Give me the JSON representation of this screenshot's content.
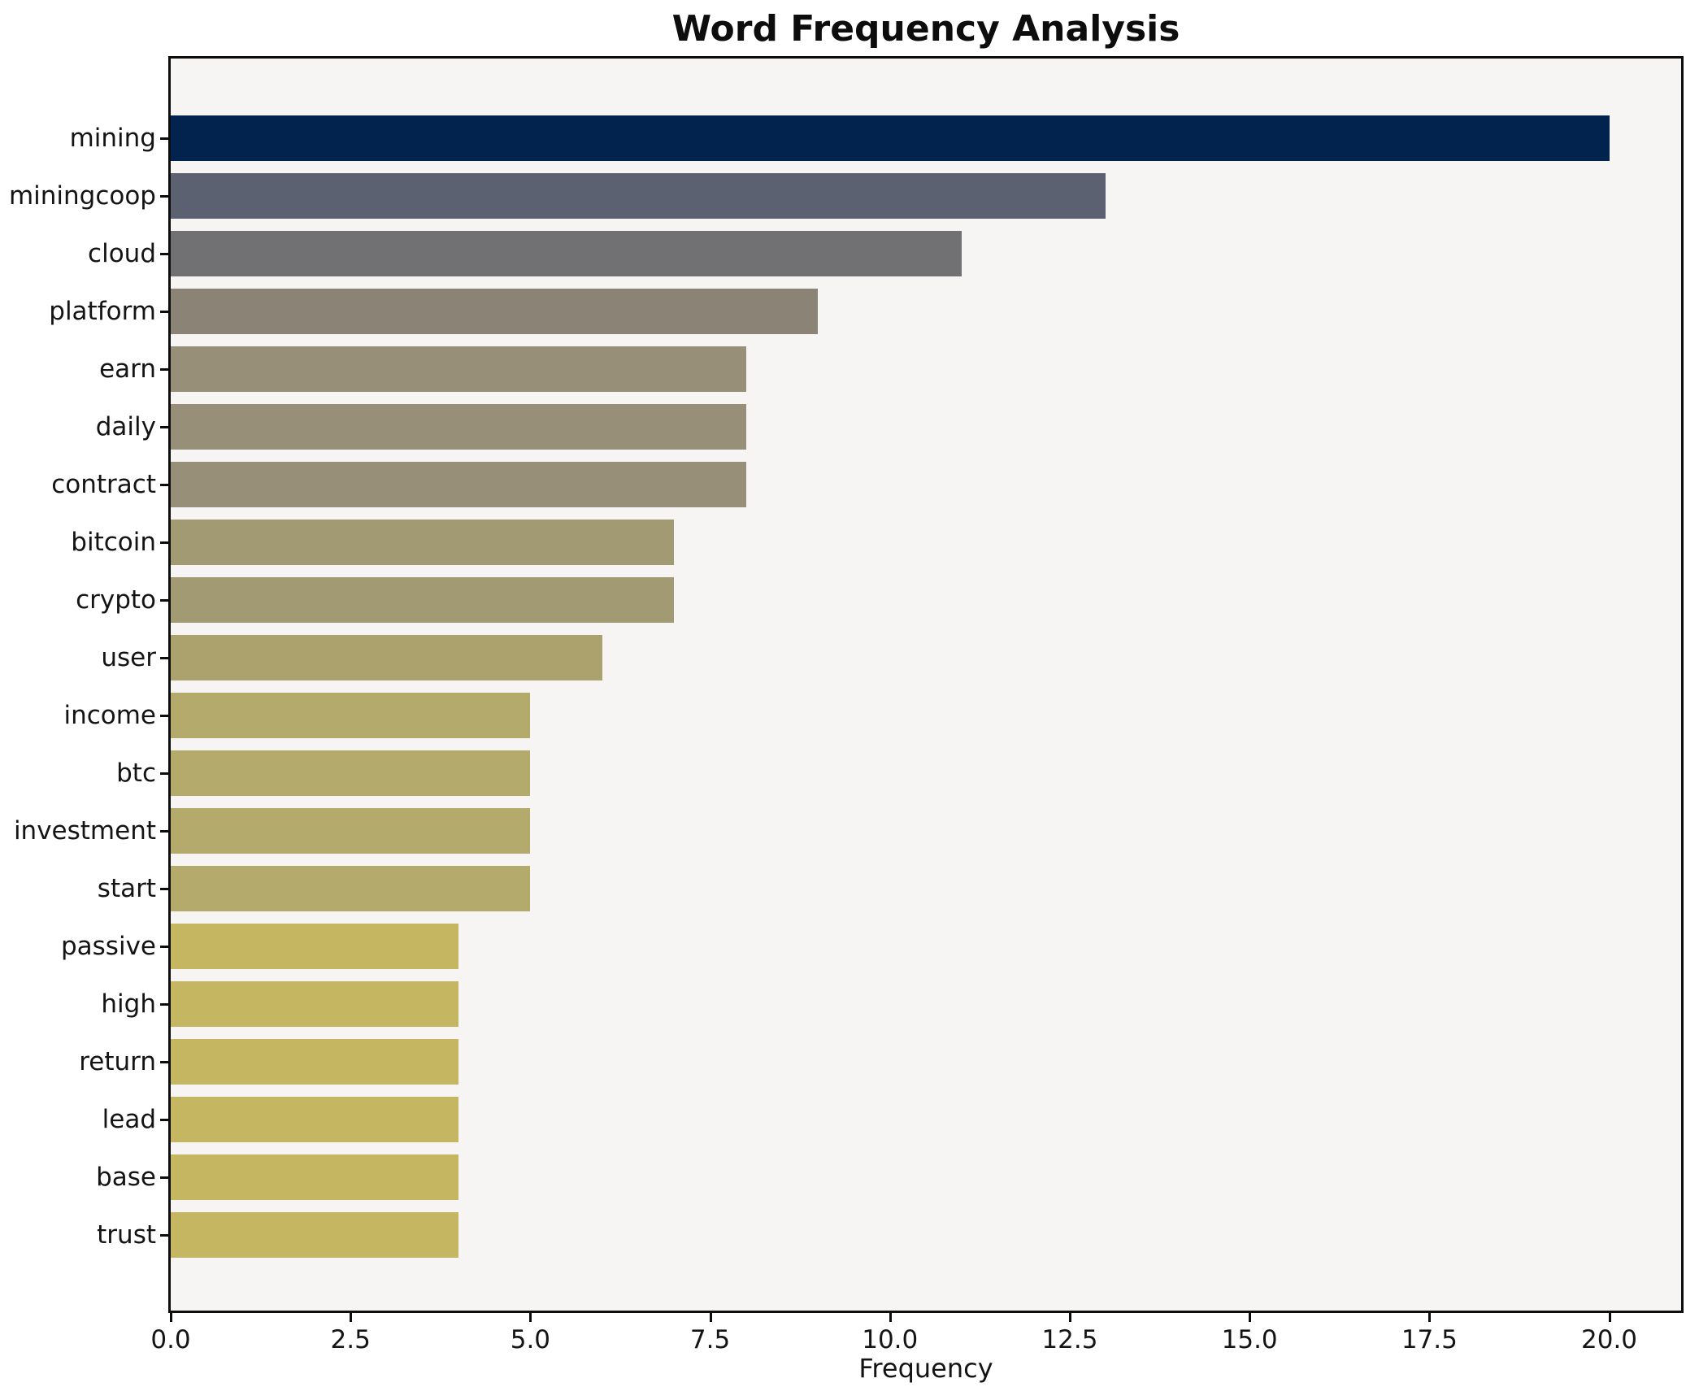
{
  "chart_data": {
    "type": "bar",
    "orientation": "horizontal",
    "title": "Word Frequency Analysis",
    "xlabel": "Frequency",
    "ylabel": "",
    "categories": [
      "mining",
      "miningcoop",
      "cloud",
      "platform",
      "earn",
      "daily",
      "contract",
      "bitcoin",
      "crypto",
      "user",
      "income",
      "btc",
      "investment",
      "start",
      "passive",
      "high",
      "return",
      "lead",
      "base",
      "trust"
    ],
    "values": [
      20,
      13,
      11,
      9,
      8,
      8,
      8,
      7,
      7,
      6,
      5,
      5,
      5,
      5,
      4,
      4,
      4,
      4,
      4,
      4
    ],
    "bar_colors": [
      "#02234d",
      "#5b6171",
      "#717072",
      "#8b8476",
      "#978f78",
      "#978f78",
      "#978f78",
      "#a19a73",
      "#a19a73",
      "#aba26e",
      "#b3aa6b",
      "#b3aa6b",
      "#b3aa6b",
      "#b3aa6b",
      "#c5b662",
      "#c5b662",
      "#c5b662",
      "#c5b662",
      "#c5b662",
      "#c5b662"
    ],
    "x_ticks": [
      0.0,
      2.5,
      5.0,
      7.5,
      10.0,
      12.5,
      15.0,
      17.5,
      20.0
    ],
    "x_tick_labels": [
      "0.0",
      "2.5",
      "5.0",
      "7.5",
      "10.0",
      "12.5",
      "15.0",
      "17.5",
      "20.0"
    ],
    "xlim": [
      0,
      21
    ],
    "grid": false,
    "legend": null,
    "plot_background": "#f6f5f4",
    "figure_background": "#ffffff",
    "spine_color": "#0d0d0d"
  }
}
